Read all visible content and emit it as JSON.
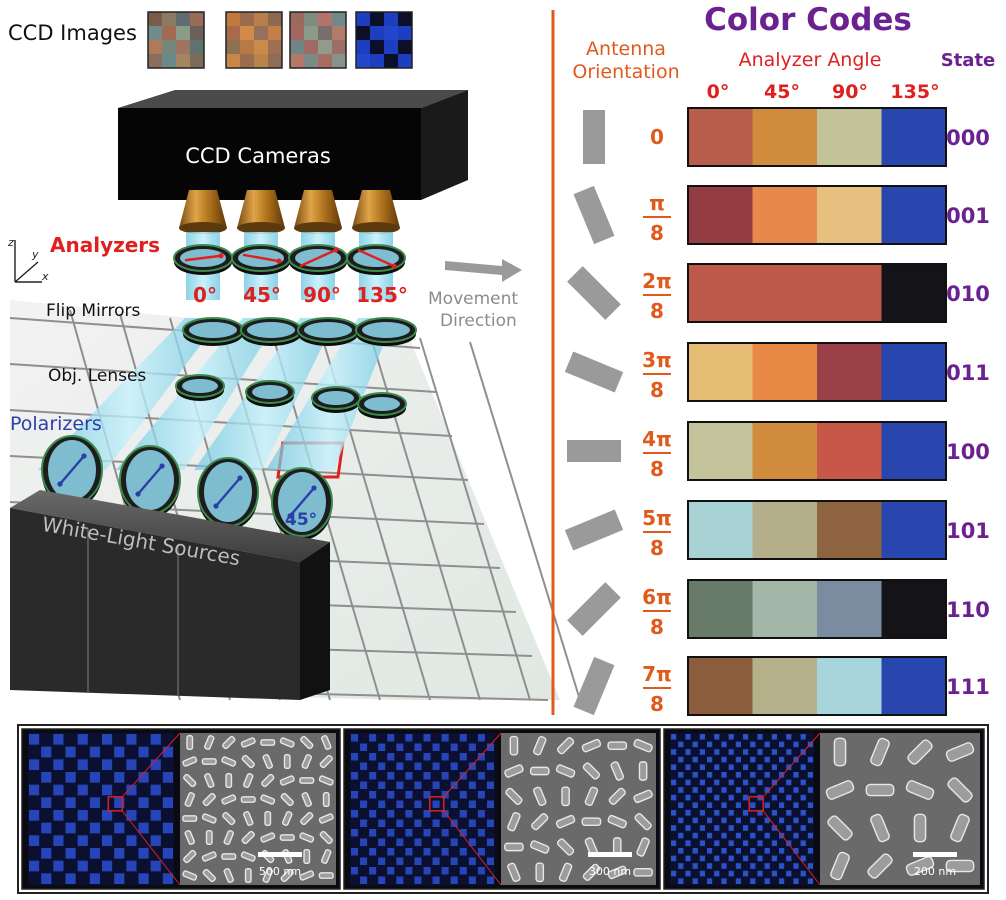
{
  "setup": {
    "ccd_images_label": "CCD Images",
    "ccd_images": [
      [
        [
          "#7a5a4a",
          "#8b7a62",
          "#5f6d73",
          "#9a6b56"
        ],
        [
          "#6f8c88",
          "#a36a52",
          "#8a9c86",
          "#6c5f5a"
        ],
        [
          "#b07a5a",
          "#75867c",
          "#9d7560",
          "#5e726f"
        ],
        [
          "#8a6e5c",
          "#6a8a8a",
          "#a58462",
          "#7e6a58"
        ]
      ],
      [
        [
          "#c07a3e",
          "#9a6b4c",
          "#b87f4a",
          "#8c6a52"
        ],
        [
          "#a86a4a",
          "#d08b48",
          "#96705a",
          "#c27f46"
        ],
        [
          "#8e7055",
          "#b57a48",
          "#c98a4a",
          "#a06e50"
        ],
        [
          "#c88648",
          "#9c6c4e",
          "#b9834c",
          "#906c56"
        ]
      ],
      [
        [
          "#9a6a5c",
          "#7f8a80",
          "#b0746a",
          "#6e8a86"
        ],
        [
          "#a36660",
          "#8c9a8a",
          "#7a6e6a",
          "#b27c6c"
        ],
        [
          "#6f8684",
          "#a06a64",
          "#8f9c8a",
          "#9c6e66"
        ],
        [
          "#b27868",
          "#7a8a84",
          "#a86c62",
          "#84948a"
        ]
      ],
      [
        [
          "#1d3fbf",
          "#0b0f2a",
          "#1d3fbf",
          "#0b0f2a"
        ],
        [
          "#0b0f2a",
          "#1d3fbf",
          "#2148cc",
          "#1d3fbf"
        ],
        [
          "#1d3fbf",
          "#0b0f2a",
          "#1d3fbf",
          "#0b0f2a"
        ],
        [
          "#2148cc",
          "#1d3fbf",
          "#0b0f2a",
          "#1d3fbf"
        ]
      ]
    ],
    "ccd_cameras_label": "CCD Cameras",
    "analyzers_label": "Analyzers",
    "analyzer_angles": [
      "0°",
      "45°",
      "90°",
      "135°"
    ],
    "axis_z": "z",
    "axis_y": "y",
    "axis_x": "x",
    "flip_mirrors_label": "Flip Mirrors",
    "obj_lenses_label": "Obj. Lenses",
    "polarizers_label": "Polarizers",
    "polarizer_angle": "45°",
    "sources_label": "White-Light Sources",
    "movement_direction_label": [
      "Movement",
      "Direction"
    ]
  },
  "color_codes": {
    "title": "Color Codes",
    "antenna_header": [
      "Antenna",
      "Orientation"
    ],
    "analyzer_header": "Analyzer Angle",
    "state_header": "State",
    "angle_headers": [
      "0°",
      "45°",
      "90°",
      "135°"
    ],
    "pi_symbol": "π",
    "denominator": "8",
    "rows": [
      {
        "orientation": "0",
        "numerator": "",
        "angle_deg": 0,
        "colors": [
          "#b85c4c",
          "#d08c3c",
          "#c2c398",
          "#2846ae"
        ],
        "state": "000"
      },
      {
        "orientation": "",
        "numerator": "",
        "angle_deg": 22.5,
        "colors": [
          "#933c42",
          "#e6894a",
          "#e6c07e",
          "#2846ae"
        ],
        "state": "001"
      },
      {
        "orientation": "",
        "numerator": "2",
        "angle_deg": 45,
        "colors": [
          "#bd5949",
          "#bd5949",
          "#bd5949",
          "#141418"
        ],
        "state": "010"
      },
      {
        "orientation": "",
        "numerator": "3",
        "angle_deg": 67.5,
        "colors": [
          "#e7bd76",
          "#e88946",
          "#9b4248",
          "#2846ae"
        ],
        "state": "011"
      },
      {
        "orientation": "",
        "numerator": "4",
        "angle_deg": 90,
        "colors": [
          "#c3c39c",
          "#d08c3c",
          "#c75848",
          "#2846ae"
        ],
        "state": "100"
      },
      {
        "orientation": "",
        "numerator": "5",
        "angle_deg": 112.5,
        "colors": [
          "#a8d2d4",
          "#b4ae8a",
          "#8e6340",
          "#2846ae"
        ],
        "state": "101"
      },
      {
        "orientation": "",
        "numerator": "6",
        "angle_deg": 135,
        "colors": [
          "#687a68",
          "#a4b6a8",
          "#7a8da0",
          "#141418"
        ],
        "state": "110"
      },
      {
        "orientation": "",
        "numerator": "7",
        "angle_deg": 157.5,
        "colors": [
          "#8c5d3c",
          "#b4b08a",
          "#a8d4dc",
          "#2846ae"
        ],
        "state": "111"
      }
    ]
  },
  "sem": {
    "scale_labels": [
      "500 nm",
      "300 nm",
      "200 nm"
    ]
  },
  "colors": {
    "orange": "#e05a1c",
    "red": "#e01f1f",
    "purple": "#6b2290",
    "blue": "#2c3fa8",
    "beam": "#8fd8ee",
    "grey": "#9a9a9a"
  },
  "icons": [
    "movement-arrow-icon",
    "axis-triad-icon",
    "pi-symbol-icon"
  ]
}
